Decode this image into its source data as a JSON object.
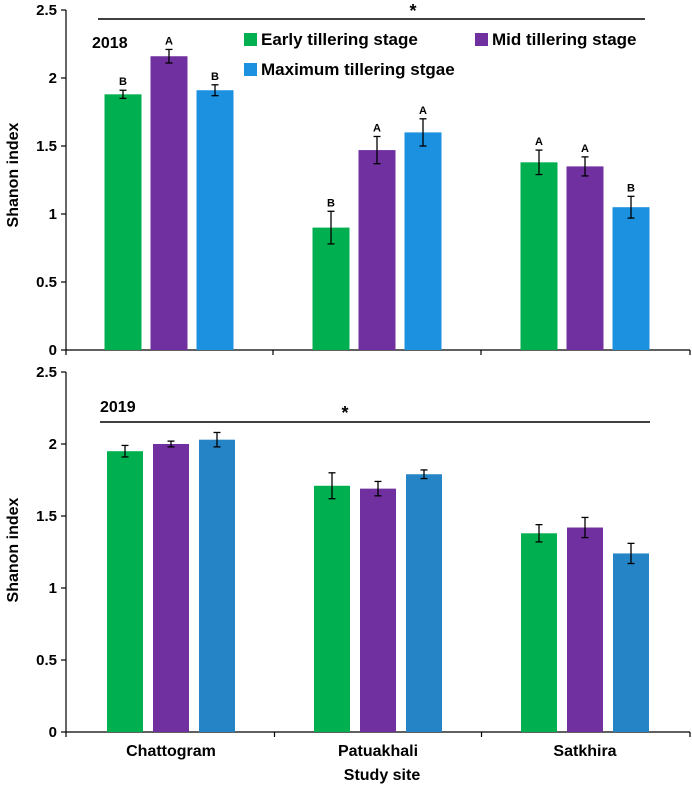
{
  "figure": {
    "shared_xlabel": "Study site",
    "sites": [
      "Chattogram",
      "Patuakhali",
      "Satkhira"
    ]
  },
  "chart_data": [
    {
      "type": "bar",
      "panel": "2018",
      "year_label": "2018",
      "significance_marker": "*",
      "ylabel": "Shanon index",
      "xlabel": "",
      "ylim": [
        0,
        2.5
      ],
      "yticks": [
        "0",
        "0.5",
        "1",
        "1.5",
        "2",
        "2.5"
      ],
      "categories": [
        "Chattogram",
        "Patuakhali",
        "Satkhira"
      ],
      "series": [
        {
          "name": "Early tillering stage",
          "color": "#00b050",
          "values": [
            1.88,
            0.9,
            1.38
          ],
          "errors": [
            0.03,
            0.12,
            0.09
          ],
          "letters": [
            "B",
            "B",
            "A"
          ]
        },
        {
          "name": "Mid tillering stage",
          "color": "#7030a0",
          "values": [
            2.16,
            1.47,
            1.35
          ],
          "errors": [
            0.05,
            0.1,
            0.07
          ],
          "letters": [
            "A",
            "A",
            "A"
          ]
        },
        {
          "name": "Maximum tillering stgae",
          "color": "#1b91e0",
          "values": [
            1.91,
            1.6,
            1.05
          ],
          "errors": [
            0.04,
            0.1,
            0.08
          ],
          "letters": [
            "B",
            "A",
            "B"
          ]
        }
      ],
      "legend": [
        "Early tillering stage",
        "Mid tillering stage",
        "Maximum tillering stgae"
      ]
    },
    {
      "type": "bar",
      "panel": "2019",
      "year_label": "2019",
      "significance_marker": "*",
      "ylabel": "Shanon index",
      "xlabel": "Study site",
      "ylim": [
        0,
        2.5
      ],
      "yticks": [
        "0",
        "0.5",
        "1",
        "1.5",
        "2",
        "2.5"
      ],
      "categories": [
        "Chattogram",
        "Patuakhali",
        "Satkhira"
      ],
      "series": [
        {
          "name": "Early tillering stage",
          "color": "#00b050",
          "values": [
            1.95,
            1.71,
            1.38
          ],
          "errors": [
            0.04,
            0.09,
            0.06
          ]
        },
        {
          "name": "Mid tillering stage",
          "color": "#7030a0",
          "values": [
            2.0,
            1.69,
            1.42
          ],
          "errors": [
            0.02,
            0.05,
            0.07
          ]
        },
        {
          "name": "Maximum tillering stgae",
          "color": "#2484c6",
          "values": [
            2.03,
            1.79,
            1.24
          ],
          "errors": [
            0.05,
            0.03,
            0.07
          ]
        }
      ]
    }
  ]
}
